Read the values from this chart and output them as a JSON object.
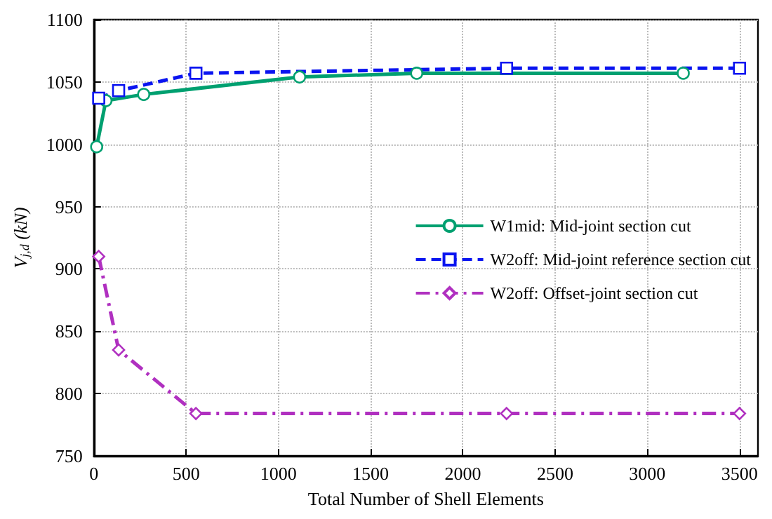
{
  "chart_data": {
    "type": "line",
    "xlabel": "Total Number of Shell Elements",
    "ylabel": "V$_{j,d}$ (kN)",
    "xlim": [
      0,
      3600
    ],
    "xticks": [
      0,
      500,
      1000,
      1500,
      2000,
      2500,
      3000,
      3500
    ],
    "ylim": [
      750,
      1100
    ],
    "yticks": [
      750,
      800,
      850,
      900,
      950,
      1000,
      1050,
      1100
    ],
    "grid": true,
    "legend": "right",
    "series": [
      {
        "name": "W1mid: Mid-joint section cut",
        "color": "#00a070",
        "marker": "circle",
        "line_style": "solid",
        "x": [
          15,
          65,
          270,
          1115,
          1750,
          3195
        ],
        "values": [
          998,
          1035,
          1040,
          1054,
          1057,
          1057
        ]
      },
      {
        "name": "W2off: Mid-joint reference section cut",
        "color": "#0a14f0",
        "marker": "square",
        "line_style": "dashed",
        "x": [
          26,
          134,
          553,
          2237,
          3500
        ],
        "values": [
          1037,
          1043,
          1057,
          1061,
          1061
        ]
      },
      {
        "name": "W2off: Offset-joint section cut",
        "color": "#b030c0",
        "marker": "diamond",
        "line_style": "dashdot",
        "x": [
          26,
          134,
          553,
          2237,
          3500
        ],
        "values": [
          910,
          835,
          784,
          784,
          784
        ]
      }
    ]
  }
}
